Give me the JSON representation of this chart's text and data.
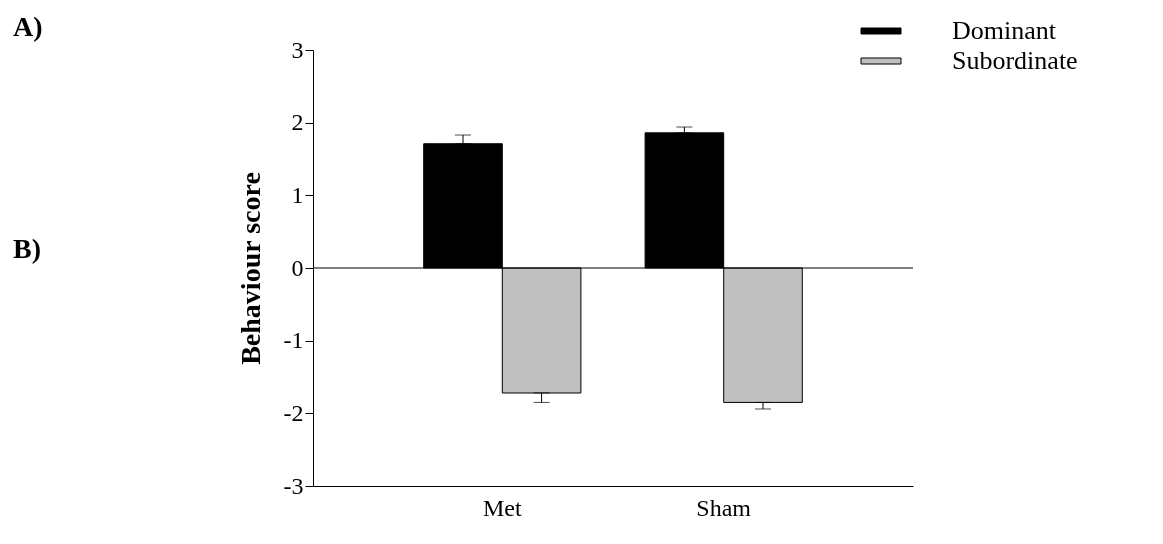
{
  "chart_data": {
    "type": "bar",
    "ylabel": "Behaviour score",
    "categories": [
      "Met",
      "Sham"
    ],
    "series": [
      {
        "name": "Dominant",
        "color": "#000000",
        "values": [
          1.71,
          1.86
        ],
        "errors": [
          [
            1.71,
            1.83
          ],
          [
            1.86,
            1.94
          ]
        ]
      },
      {
        "name": "Subordinate",
        "color": "#c0c0c0",
        "values": [
          -1.72,
          -1.85
        ],
        "errors": [
          [
            -1.85,
            -1.72
          ],
          [
            -1.94,
            -1.85
          ]
        ]
      }
    ],
    "ylim": [
      -3,
      3
    ],
    "yticks": [
      -3,
      -2,
      -1,
      0,
      1,
      2,
      3
    ],
    "ref_lines": [
      {
        "axis": "y",
        "value": 0
      }
    ],
    "annotations": [
      "A)",
      "B)"
    ],
    "grid": false,
    "legend": "top right"
  }
}
